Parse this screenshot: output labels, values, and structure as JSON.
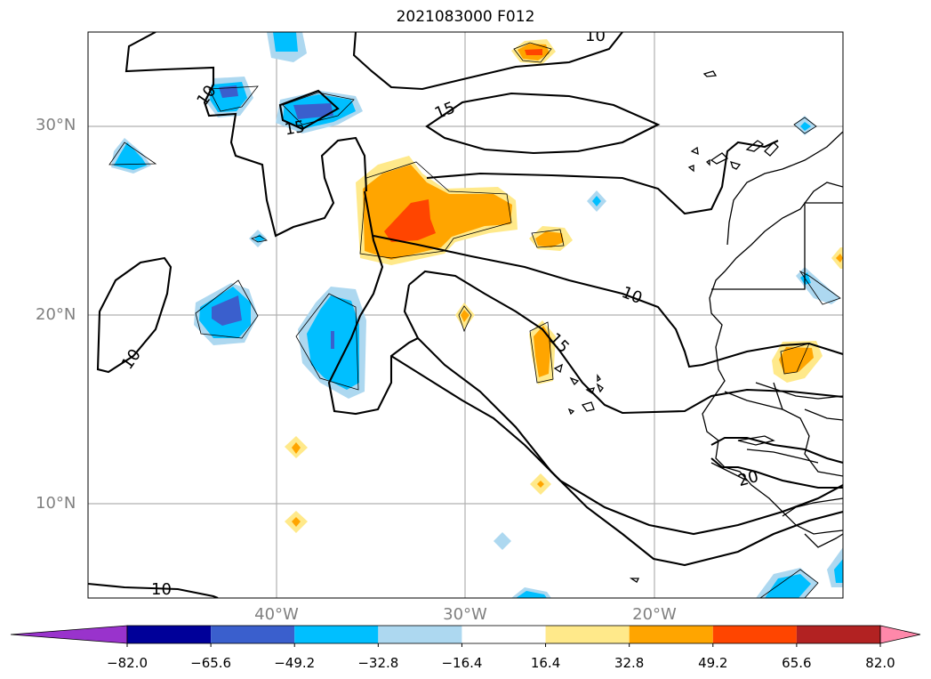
{
  "title": "2021083000 F012",
  "lat_labels": [
    "30°N",
    "20°N",
    "10°N"
  ],
  "lon_labels": [
    "40°W",
    "30°W",
    "20°W"
  ],
  "contour_labels": [
    "10",
    "10",
    "15",
    "15",
    "10",
    "15",
    "10",
    "20",
    "10"
  ],
  "colorbar": {
    "ticks": [
      "−82.0",
      "−65.6",
      "−49.2",
      "−32.8",
      "−16.4",
      "16.4",
      "32.8",
      "49.2",
      "65.6",
      "82.0"
    ],
    "colors": [
      "#9933cc",
      "#000099",
      "#3a5fcd",
      "#00bfff",
      "#add8f0",
      "#ffffff",
      "#ffe98a",
      "#ffa500",
      "#ff4500",
      "#b22222",
      "#ff88aa"
    ]
  }
}
